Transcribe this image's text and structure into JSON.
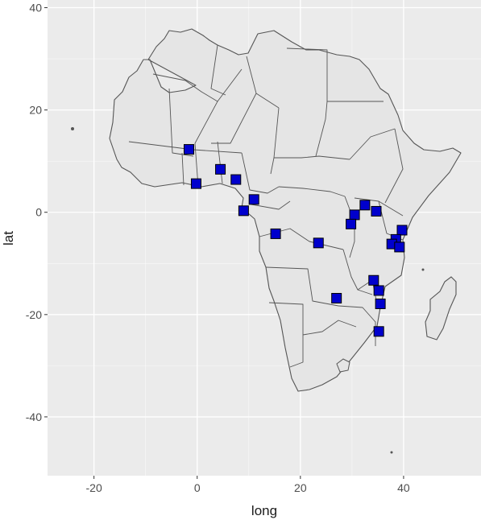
{
  "chart_data": {
    "type": "scatter",
    "title": "",
    "xlabel": "long",
    "ylabel": "lat",
    "xlim": [
      -29,
      55
    ],
    "ylim": [
      -51.5,
      41.5
    ],
    "x_ticks": [
      -20,
      0,
      20,
      40
    ],
    "y_ticks": [
      -40,
      -20,
      0,
      20,
      40
    ],
    "x_tick_labels": [
      "-20",
      "0",
      "20",
      "40"
    ],
    "y_tick_labels": [
      "-40",
      "-20",
      "0",
      "20",
      "40"
    ],
    "grid": true,
    "legend": "none",
    "colors": {
      "panel": "#ebebeb",
      "grid": "#ffffff",
      "land": "#e5e5e5",
      "border": "#555555",
      "marker_fill": "#0000cd",
      "marker_edge": "#000000"
    },
    "series": [
      {
        "marker": "square",
        "points": [
          {
            "x": -1.6,
            "y": 12.3
          },
          {
            "x": -0.2,
            "y": 5.6
          },
          {
            "x": 4.5,
            "y": 8.4
          },
          {
            "x": 7.5,
            "y": 6.4
          },
          {
            "x": 11.0,
            "y": 2.5
          },
          {
            "x": 9.0,
            "y": 0.3
          },
          {
            "x": 15.2,
            "y": -4.2
          },
          {
            "x": 23.5,
            "y": -6.0
          },
          {
            "x": 32.5,
            "y": 1.4
          },
          {
            "x": 30.5,
            "y": -0.5
          },
          {
            "x": 29.8,
            "y": -2.3
          },
          {
            "x": 34.7,
            "y": 0.2
          },
          {
            "x": 39.7,
            "y": -3.5
          },
          {
            "x": 38.5,
            "y": -5.3
          },
          {
            "x": 37.7,
            "y": -6.2
          },
          {
            "x": 39.2,
            "y": -6.8
          },
          {
            "x": 34.2,
            "y": -13.3
          },
          {
            "x": 35.2,
            "y": -15.3
          },
          {
            "x": 35.5,
            "y": -17.9
          },
          {
            "x": 27.0,
            "y": -16.8
          },
          {
            "x": 35.2,
            "y": -23.3
          }
        ]
      }
    ]
  }
}
